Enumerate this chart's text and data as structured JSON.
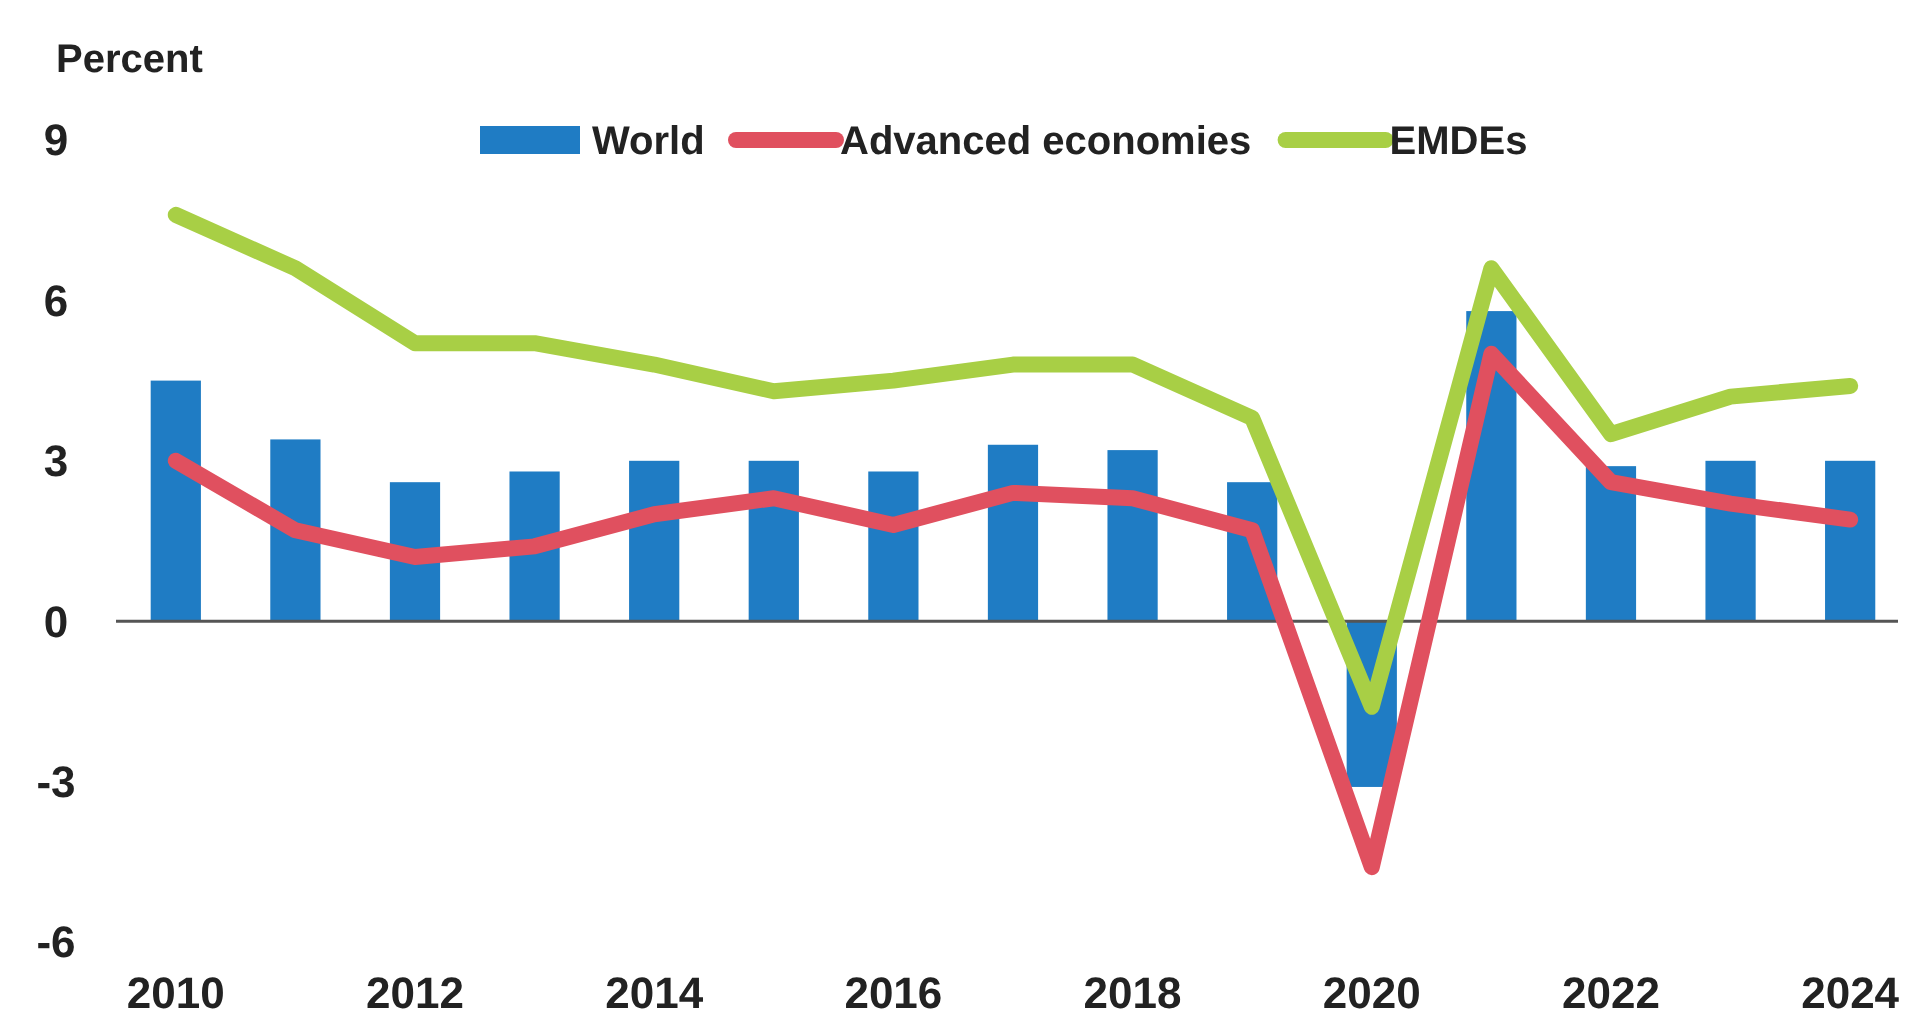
{
  "chart_data": {
    "type": "bar",
    "ylabel": "Percent",
    "x": [
      2010,
      2011,
      2012,
      2013,
      2014,
      2015,
      2016,
      2017,
      2018,
      2019,
      2020,
      2021,
      2022,
      2023,
      2024
    ],
    "series": [
      {
        "name": "World",
        "color": "#1f7cc4",
        "values": [
          4.5,
          3.4,
          2.6,
          2.8,
          3.0,
          3.0,
          2.8,
          3.3,
          3.2,
          2.6,
          -3.1,
          5.8,
          2.9,
          3.0,
          3.0
        ]
      },
      {
        "name": "Advanced economies",
        "type": "line",
        "color": "#e0505f",
        "values": [
          3.0,
          1.7,
          1.2,
          1.4,
          2.0,
          2.3,
          1.8,
          2.4,
          2.3,
          1.7,
          -4.6,
          5.0,
          2.6,
          2.2,
          1.9
        ]
      },
      {
        "name": "EMDEs",
        "type": "line",
        "color": "#a8cf45",
        "values": [
          7.6,
          6.6,
          5.2,
          5.2,
          4.8,
          4.3,
          4.5,
          4.8,
          4.8,
          3.8,
          -1.6,
          6.6,
          3.5,
          4.2,
          4.4
        ]
      }
    ],
    "xlim": [
      2009.5,
      2024.4
    ],
    "xticks": [
      2010,
      2012,
      2014,
      2016,
      2018,
      2020,
      2022,
      2024
    ],
    "ylim": [
      -6,
      9
    ],
    "yticks": [
      -6,
      -3,
      0,
      3,
      6,
      9
    ],
    "legend": "top",
    "line_style": "solid",
    "marker": "none"
  }
}
